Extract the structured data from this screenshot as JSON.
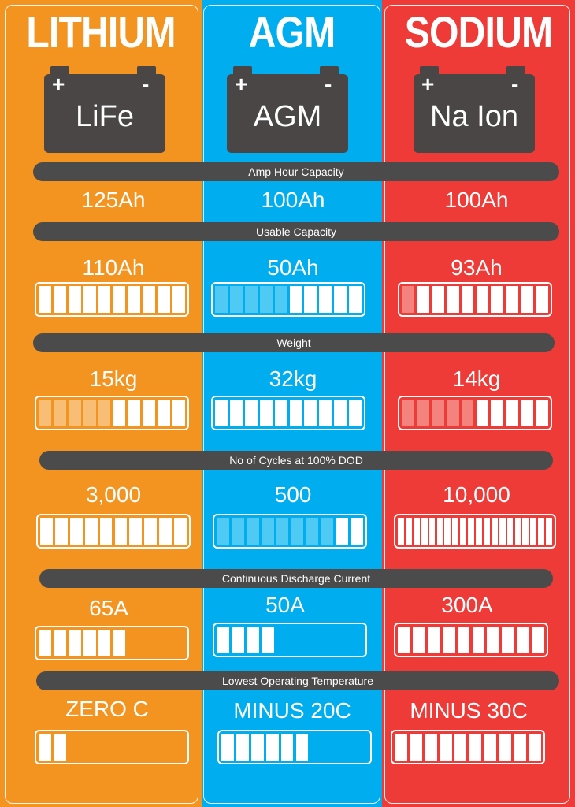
{
  "colors": {
    "orange": "#f39421",
    "blue": "#00adef",
    "red": "#ee3b37",
    "dark": "#4b4b4b"
  },
  "columns": [
    {
      "id": "lithium",
      "title": "LITHIUM",
      "chem": "LiFe",
      "color": "#f39421",
      "shade": "#f8be75"
    },
    {
      "id": "agm",
      "title": "AGM",
      "chem": "AGM",
      "color": "#00adef",
      "shade": "#4fcaf5"
    },
    {
      "id": "sodium",
      "title": "SODIUM",
      "chem": "Na Ion",
      "color": "#ee3b37",
      "shade": "#f4837d"
    }
  ],
  "battery": {
    "plus": "+",
    "minus": "-"
  },
  "rows": [
    {
      "id": "amp-hour",
      "label": "Amp Hour Capacity",
      "values": [
        "125Ah",
        "100Ah",
        "100Ah"
      ],
      "bars": null
    },
    {
      "id": "usable",
      "label": "Usable Capacity",
      "values": [
        "110Ah",
        "50Ah",
        "93Ah"
      ],
      "bars": [
        {
          "segments": 10,
          "filled": 10,
          "shaded": 0
        },
        {
          "segments": 10,
          "filled": 10,
          "shaded": 5
        },
        {
          "segments": 10,
          "filled": 10,
          "shaded": 1
        }
      ]
    },
    {
      "id": "weight",
      "label": "Weight",
      "values": [
        "15kg",
        "32kg",
        "14kg"
      ],
      "bars": [
        {
          "segments": 10,
          "filled": 10,
          "shaded": 5
        },
        {
          "segments": 10,
          "filled": 10,
          "shaded": 0
        },
        {
          "segments": 10,
          "filled": 10,
          "shaded": 5
        }
      ]
    },
    {
      "id": "cycles",
      "label": "No of Cycles at 100% DOD",
      "values": [
        "3,000",
        "500",
        "10,000"
      ],
      "bars": [
        {
          "segments": 10,
          "filled": 10,
          "shaded": 0
        },
        {
          "segments": 10,
          "filled": 10,
          "shaded": 8
        },
        {
          "segments": 20,
          "filled": 20,
          "shaded": 0
        }
      ]
    },
    {
      "id": "discharge",
      "label": "Continuous Discharge Current",
      "values": [
        "65A",
        "50A",
        "300A"
      ],
      "bars": [
        {
          "segments": 10,
          "filled": 6,
          "shaded": 0
        },
        {
          "segments": 10,
          "filled": 4,
          "shaded": 0
        },
        {
          "segments": 10,
          "filled": 10,
          "shaded": 0
        }
      ]
    },
    {
      "id": "temperature",
      "label": "Lowest Operating Temperature",
      "values": [
        "ZERO C",
        "MINUS 20C",
        "MINUS 30C"
      ],
      "bars": [
        {
          "segments": 10,
          "filled": 2,
          "shaded": 0
        },
        {
          "segments": 10,
          "filled": 6,
          "shaded": 0
        },
        {
          "segments": 10,
          "filled": 10,
          "shaded": 0
        }
      ]
    }
  ]
}
